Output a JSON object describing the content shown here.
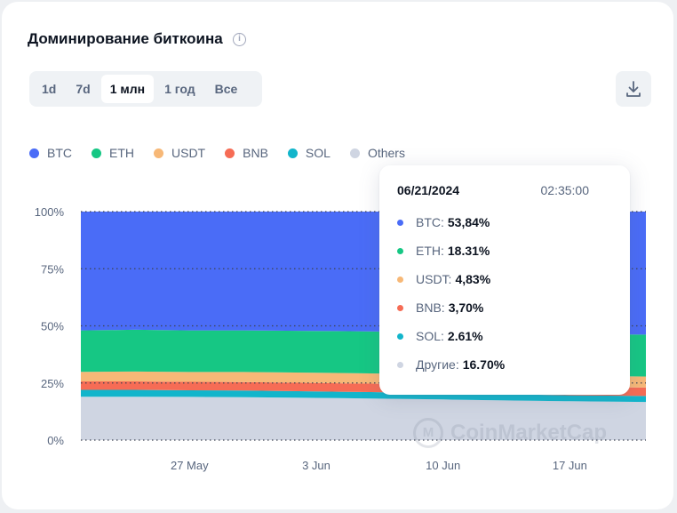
{
  "header": {
    "title": "Доминирование биткоина",
    "info_icon": "info-icon"
  },
  "tabs": [
    {
      "label": "1d",
      "active": false
    },
    {
      "label": "7d",
      "active": false
    },
    {
      "label": "1 млн",
      "active": true
    },
    {
      "label": "1 год",
      "active": false
    },
    {
      "label": "Все",
      "active": false
    }
  ],
  "download_icon": "download-icon",
  "legend": [
    {
      "label": "BTC",
      "color": "#4a6cf7"
    },
    {
      "label": "ETH",
      "color": "#16c784"
    },
    {
      "label": "USDT",
      "color": "#f7b877"
    },
    {
      "label": "BNB",
      "color": "#f66c55"
    },
    {
      "label": "SOL",
      "color": "#12b5cb"
    },
    {
      "label": "Others",
      "color": "#cfd5e2"
    }
  ],
  "tooltip": {
    "date": "06/21/2024",
    "time": "02:35:00",
    "rows": [
      {
        "label": "BTC:",
        "value": "53,84%",
        "color": "#4a6cf7"
      },
      {
        "label": "ETH:",
        "value": "18.31%",
        "color": "#16c784"
      },
      {
        "label": "USDT:",
        "value": "4,83%",
        "color": "#f7b877"
      },
      {
        "label": "BNB:",
        "value": "3,70%",
        "color": "#f66c55"
      },
      {
        "label": "SOL:",
        "value": "2.61%",
        "color": "#12b5cb"
      },
      {
        "label": "Другие:",
        "value": "16.70%",
        "color": "#cfd5e2"
      }
    ]
  },
  "watermark": "CoinMarketCap",
  "chart_data": {
    "type": "area",
    "stacked": true,
    "x_ticks": [
      "27 May",
      "3 Jun",
      "10 Jun",
      "17 Jun"
    ],
    "y_ticks": [
      "0%",
      "25%",
      "50%",
      "75%",
      "100%"
    ],
    "ylim": [
      0,
      100
    ],
    "grid": true,
    "legend_position": "top-left",
    "x": [
      "2024-05-21",
      "2024-05-24",
      "2024-05-27",
      "2024-05-30",
      "2024-06-03",
      "2024-06-06",
      "2024-06-10",
      "2024-06-13",
      "2024-06-17",
      "2024-06-21"
    ],
    "series": [
      {
        "name": "Others",
        "values": [
          19.0,
          19.0,
          18.9,
          18.8,
          18.5,
          18.2,
          17.8,
          17.4,
          17.0,
          16.7
        ]
      },
      {
        "name": "SOL",
        "values": [
          3.0,
          3.0,
          2.9,
          2.9,
          2.8,
          2.8,
          2.7,
          2.7,
          2.6,
          2.61
        ]
      },
      {
        "name": "BNB",
        "values": [
          3.7,
          3.7,
          3.7,
          3.7,
          3.7,
          3.7,
          3.7,
          3.7,
          3.7,
          3.7
        ]
      },
      {
        "name": "USDT",
        "values": [
          4.2,
          4.3,
          4.3,
          4.4,
          4.5,
          4.5,
          4.6,
          4.7,
          4.8,
          4.83
        ]
      },
      {
        "name": "ETH",
        "values": [
          18.1,
          18.3,
          18.2,
          18.2,
          18.3,
          18.4,
          18.3,
          18.3,
          18.3,
          18.31
        ]
      },
      {
        "name": "BTC",
        "values": [
          52.0,
          51.7,
          52.0,
          52.0,
          52.2,
          52.4,
          52.9,
          53.2,
          53.6,
          53.84
        ]
      }
    ],
    "colors": [
      "#cfd5e2",
      "#12b5cb",
      "#f66c55",
      "#f7b877",
      "#16c784",
      "#4a6cf7"
    ]
  }
}
